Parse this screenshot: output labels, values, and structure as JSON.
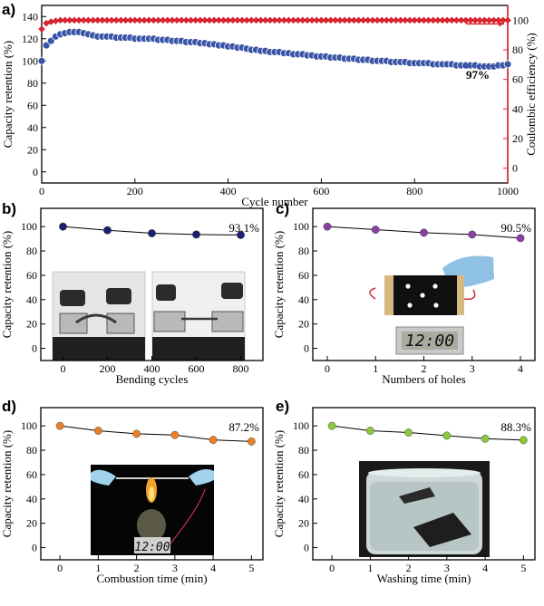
{
  "panels": {
    "a": "a)",
    "b": "b)",
    "c": "c)",
    "d": "d)",
    "e": "e)"
  },
  "colors": {
    "retention": "#3b55a6",
    "efficiency": "#e0232f",
    "b": "#1c1f6e",
    "c": "#8a3fa2",
    "d": "#e8802a",
    "e": "#8cc63f"
  },
  "chart_data": [
    {
      "id": "a",
      "type": "scatter",
      "xlabel": "Cycle number",
      "ylabel": "Capacity retention (%)",
      "y2label": "Coulombic efficiency (%)",
      "xlim": [
        0,
        1000
      ],
      "ylim": [
        -10,
        150
      ],
      "y2lim": [
        -10,
        110
      ],
      "xticks": [
        0,
        200,
        400,
        600,
        800,
        1000
      ],
      "yticks": [
        0,
        20,
        40,
        60,
        80,
        100,
        120,
        140
      ],
      "y2ticks": [
        0,
        20,
        40,
        60,
        80,
        100
      ],
      "annotation": "97%",
      "series": [
        {
          "axis": "left",
          "x": [
            0,
            10,
            20,
            30,
            40,
            50,
            60,
            70,
            80,
            90,
            100,
            110,
            120,
            130,
            140,
            150,
            160,
            170,
            180,
            190,
            200,
            210,
            220,
            230,
            240,
            250,
            260,
            270,
            280,
            290,
            300,
            310,
            320,
            330,
            340,
            350,
            360,
            370,
            380,
            390,
            400,
            410,
            420,
            430,
            440,
            450,
            460,
            470,
            480,
            490,
            500,
            510,
            520,
            530,
            540,
            550,
            560,
            570,
            580,
            590,
            600,
            610,
            620,
            630,
            640,
            650,
            660,
            670,
            680,
            690,
            700,
            710,
            720,
            730,
            740,
            750,
            760,
            770,
            780,
            790,
            800,
            810,
            820,
            830,
            840,
            850,
            860,
            870,
            880,
            890,
            900,
            910,
            920,
            930,
            940,
            950,
            960,
            970,
            980,
            990,
            1000
          ],
          "values": [
            100,
            114,
            118,
            122,
            124,
            125,
            126,
            126,
            126,
            125,
            124,
            123,
            122,
            122,
            122,
            122,
            121,
            121,
            121,
            121,
            120,
            120,
            120,
            120,
            120,
            119,
            119,
            119,
            118,
            118,
            118,
            117,
            117,
            117,
            116,
            116,
            115,
            115,
            114,
            114,
            113,
            113,
            112,
            112,
            111,
            110,
            110,
            109,
            109,
            108,
            108,
            108,
            107,
            107,
            106,
            106,
            106,
            105,
            105,
            104,
            104,
            104,
            103,
            103,
            103,
            102,
            102,
            102,
            101,
            101,
            101,
            100,
            100,
            100,
            100,
            99,
            99,
            99,
            99,
            98,
            98,
            98,
            98,
            98,
            97,
            97,
            97,
            97,
            97,
            96,
            96,
            96,
            96,
            96,
            95,
            95,
            95,
            95,
            96,
            96,
            97
          ]
        },
        {
          "axis": "right",
          "x": [
            0,
            10,
            20,
            30,
            40,
            50,
            60,
            70,
            80,
            90,
            100,
            110,
            120,
            130,
            140,
            150,
            160,
            170,
            180,
            190,
            200,
            210,
            220,
            230,
            240,
            250,
            260,
            270,
            280,
            290,
            300,
            310,
            320,
            330,
            340,
            350,
            360,
            370,
            380,
            390,
            400,
            410,
            420,
            430,
            440,
            450,
            460,
            470,
            480,
            490,
            500,
            510,
            520,
            530,
            540,
            550,
            560,
            570,
            580,
            590,
            600,
            610,
            620,
            630,
            640,
            650,
            660,
            670,
            680,
            690,
            700,
            710,
            720,
            730,
            740,
            750,
            760,
            770,
            780,
            790,
            800,
            810,
            820,
            830,
            840,
            850,
            860,
            870,
            880,
            890,
            900,
            910,
            920,
            930,
            940,
            950,
            960,
            970,
            980,
            990,
            1000
          ],
          "values": [
            94,
            98,
            99,
            99.5,
            100,
            100,
            100,
            100,
            100,
            100,
            100,
            100,
            100,
            100,
            100,
            100,
            100,
            100,
            100,
            100,
            100,
            100,
            100,
            100,
            100,
            100,
            100,
            100,
            100,
            100,
            100,
            100,
            100,
            100,
            100,
            100,
            100,
            100,
            100,
            100,
            100,
            100,
            100,
            100,
            100,
            100,
            100,
            100,
            100,
            100,
            100,
            100,
            100,
            100,
            100,
            100,
            100,
            100,
            100,
            100,
            100,
            100,
            100,
            100,
            100,
            100,
            100,
            100,
            100,
            100,
            100,
            100,
            100,
            100,
            100,
            100,
            100,
            100,
            100,
            100,
            100,
            100,
            100,
            100,
            100,
            100,
            100,
            100,
            100,
            100,
            100,
            100,
            100,
            100,
            100,
            100,
            100,
            100,
            100,
            100,
            100
          ]
        }
      ]
    },
    {
      "id": "b",
      "type": "line",
      "xlabel": "Bending cycles",
      "ylabel": "Capacity retention (%)",
      "xlim": [
        -100,
        900
      ],
      "ylim": [
        -10,
        115
      ],
      "xticks": [
        0,
        200,
        400,
        600,
        800
      ],
      "yticks": [
        0,
        20,
        40,
        60,
        80,
        100
      ],
      "x": [
        0,
        200,
        400,
        600,
        800
      ],
      "values": [
        100,
        97,
        94.5,
        93.5,
        93.1
      ],
      "annotation": "93.1%"
    },
    {
      "id": "c",
      "type": "line",
      "xlabel": "Numbers of holes",
      "ylabel": "Capacity retention (%)",
      "xlim": [
        -0.3,
        4.3
      ],
      "ylim": [
        -10,
        115
      ],
      "xticks": [
        0,
        1,
        2,
        3,
        4
      ],
      "yticks": [
        0,
        20,
        40,
        60,
        80,
        100
      ],
      "x": [
        0,
        1,
        2,
        3,
        4
      ],
      "values": [
        100,
        97.5,
        95,
        93.5,
        90.5
      ],
      "annotation": "90.5%"
    },
    {
      "id": "d",
      "type": "line",
      "xlabel": "Combustion  time (min)",
      "ylabel": "Capacity retention (%)",
      "xlim": [
        -0.5,
        5.3
      ],
      "ylim": [
        -10,
        115
      ],
      "xticks": [
        0,
        1,
        2,
        3,
        4,
        5
      ],
      "yticks": [
        0,
        20,
        40,
        60,
        80,
        100
      ],
      "x": [
        0,
        1,
        2,
        3,
        4,
        5
      ],
      "values": [
        100,
        96,
        93.5,
        92.5,
        88.5,
        87.2
      ],
      "annotation": "87.2%"
    },
    {
      "id": "e",
      "type": "line",
      "xlabel": "Washing  time (min)",
      "ylabel": "Capacity retention (%)",
      "xlim": [
        -0.5,
        5.3
      ],
      "ylim": [
        -10,
        115
      ],
      "xticks": [
        0,
        1,
        2,
        3,
        4,
        5
      ],
      "yticks": [
        0,
        20,
        40,
        60,
        80,
        100
      ],
      "x": [
        0,
        1,
        2,
        3,
        4,
        5
      ],
      "values": [
        100,
        96,
        94.5,
        92,
        89.5,
        88.3
      ],
      "annotation": "88.3%"
    }
  ]
}
